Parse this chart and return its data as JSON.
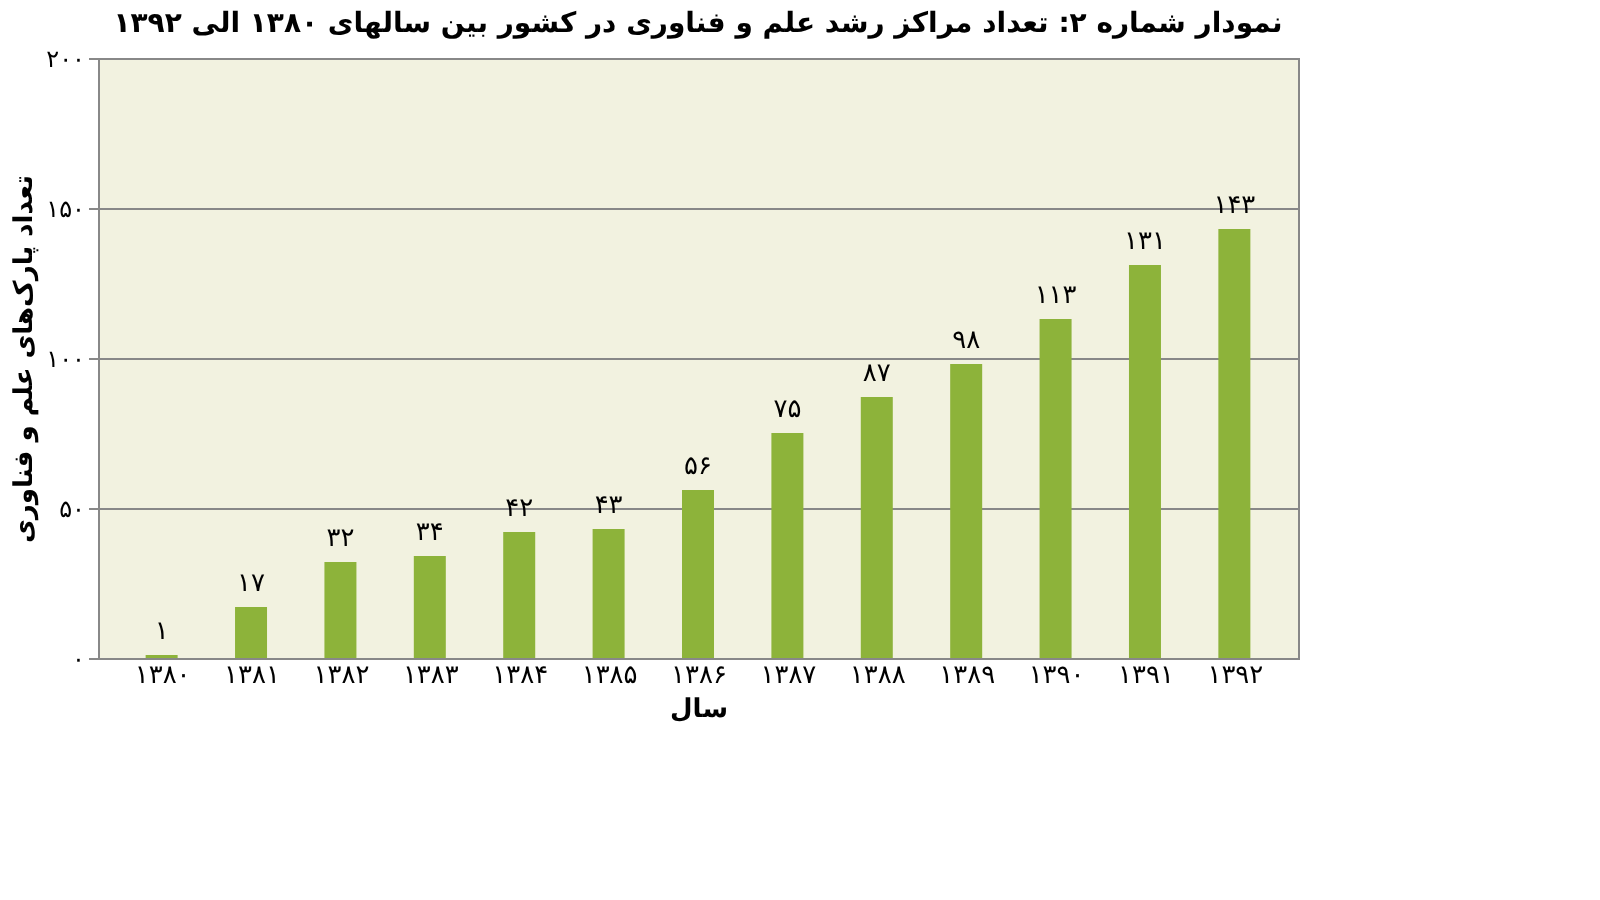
{
  "chart_data": {
    "type": "bar",
    "title": "نمودار شماره ۲: تعداد مراکز رشد علم و فناوری در کشور بین سالهای ۱۳۸۰ الی ۱۳۹۲",
    "xlabel": "سال",
    "ylabel": "تعداد پارک‌های علم و فناوری",
    "categories": [
      "۱۳۸۰",
      "۱۳۸۱",
      "۱۳۸۲",
      "۱۳۸۳",
      "۱۳۸۴",
      "۱۳۸۵",
      "۱۳۸۶",
      "۱۳۸۷",
      "۱۳۸۸",
      "۱۳۸۹",
      "۱۳۹۰",
      "۱۳۹۱",
      "۱۳۹۲"
    ],
    "values": [
      1,
      17,
      32,
      34,
      42,
      43,
      56,
      75,
      87,
      98,
      113,
      131,
      143
    ],
    "value_labels": [
      "۱",
      "۱۷",
      "۳۲",
      "۳۴",
      "۴۲",
      "۴۳",
      "۵۶",
      "۷۵",
      "۸۷",
      "۹۸",
      "۱۱۳",
      "۱۳۱",
      "۱۴۳"
    ],
    "color": "#8db33a",
    "ylim": [
      0,
      200
    ],
    "yticks": [
      {
        "value": 0,
        "label": "۰"
      },
      {
        "value": 50,
        "label": "۵۰"
      },
      {
        "value": 100,
        "label": "۱۰۰"
      },
      {
        "value": 150,
        "label": "۱۵۰"
      },
      {
        "value": 200,
        "label": "۲۰۰"
      }
    ],
    "grid": "y"
  }
}
